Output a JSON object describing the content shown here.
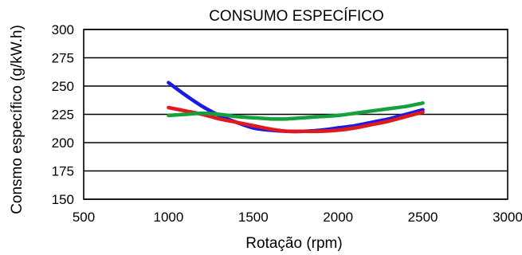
{
  "chart_data": {
    "type": "line",
    "title": "CONSUMO ESPECÍFICO",
    "xlabel": "Rotação (rpm)",
    "ylabel": "Consmo específico (g/kW.h)",
    "xlim": [
      500,
      3000
    ],
    "ylim": [
      150,
      300
    ],
    "xticks": [
      500,
      1000,
      1500,
      2000,
      2500,
      3000
    ],
    "yticks": [
      150,
      175,
      200,
      225,
      250,
      275,
      300
    ],
    "grid": "horizontal",
    "legend": "none",
    "series": [
      {
        "color": "#1a1ae6",
        "x": [
          1000,
          1100,
          1200,
          1300,
          1400,
          1500,
          1600,
          1700,
          1800,
          1900,
          2000,
          2100,
          2200,
          2300,
          2400,
          2500
        ],
        "y": [
          253,
          242,
          232,
          224,
          218,
          213,
          211,
          210,
          210,
          211,
          213,
          215,
          218,
          221,
          225,
          229
        ]
      },
      {
        "color": "#e01a1a",
        "x": [
          1000,
          1100,
          1200,
          1300,
          1400,
          1500,
          1600,
          1700,
          1800,
          1900,
          2000,
          2100,
          2200,
          2300,
          2400,
          2500
        ],
        "y": [
          231,
          228,
          225,
          221,
          218,
          215,
          212,
          210,
          210,
          210,
          211,
          213,
          216,
          219,
          223,
          227
        ]
      },
      {
        "color": "#14a03c",
        "x": [
          1000,
          1100,
          1200,
          1300,
          1400,
          1500,
          1600,
          1700,
          1800,
          1900,
          2000,
          2100,
          2200,
          2300,
          2400,
          2500
        ],
        "y": [
          224,
          225,
          226,
          225,
          223,
          222,
          221,
          221,
          222,
          223,
          224,
          226,
          228,
          230,
          232,
          235
        ]
      }
    ]
  }
}
